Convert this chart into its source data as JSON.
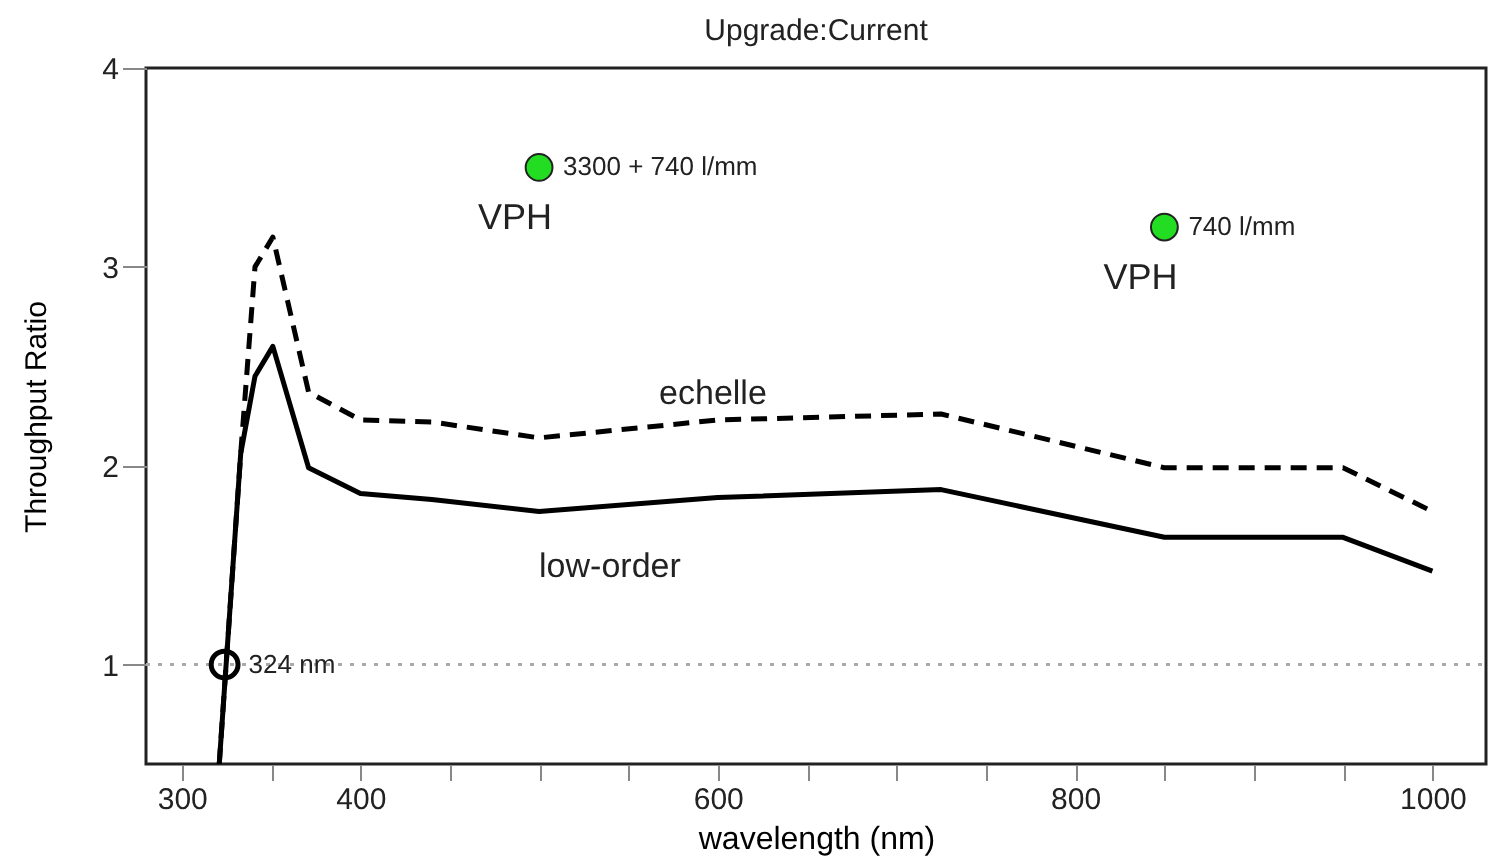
{
  "chart_data": {
    "type": "line",
    "title": "Upgrade:Current",
    "xlabel": "wavelength (nm)",
    "ylabel": "Throughput Ratio",
    "xlim": [
      280,
      1030
    ],
    "ylim": [
      0.5,
      4
    ],
    "xticks": [
      300,
      {
        "value": 350,
        "label": null
      },
      400,
      {
        "value": 450,
        "label": null
      },
      {
        "value": 500,
        "label": null
      },
      {
        "value": 550,
        "label": null
      },
      600,
      {
        "value": 650,
        "label": null
      },
      {
        "value": 700,
        "label": null
      },
      {
        "value": 750,
        "label": null
      },
      800,
      {
        "value": 850,
        "label": null
      },
      {
        "value": 900,
        "label": null
      },
      {
        "value": 950,
        "label": null
      },
      1000
    ],
    "yticks": [
      1,
      2,
      3,
      4
    ],
    "series": [
      {
        "name": "echelle",
        "color": "#000000",
        "line_style": "dashed",
        "x": [
          321,
          333,
          341,
          351,
          371,
          400,
          440,
          500,
          600,
          725,
          850,
          950,
          1000
        ],
        "values": [
          0.5,
          2.06,
          3.0,
          3.15,
          2.37,
          2.23,
          2.22,
          2.14,
          2.23,
          2.26,
          1.99,
          1.99,
          1.77
        ]
      },
      {
        "name": "low-order",
        "color": "#000000",
        "line_style": "solid",
        "x": [
          321,
          333,
          341,
          351,
          371,
          400,
          440,
          500,
          600,
          725,
          850,
          950,
          1000
        ],
        "values": [
          0.5,
          2.06,
          2.45,
          2.6,
          1.99,
          1.86,
          1.83,
          1.77,
          1.84,
          1.88,
          1.64,
          1.64,
          1.47
        ]
      },
      {
        "type": "scatter",
        "color": "#22dd22",
        "marker": "circle",
        "x": [
          500,
          850
        ],
        "values": [
          3.5,
          3.2
        ]
      },
      {
        "type": "scatter",
        "color": "#000000",
        "marker": "circle",
        "x": [
          324
        ],
        "values": [
          1
        ]
      }
    ],
    "ref_lines": [
      {
        "axis": "y",
        "value": 1,
        "color": "#aaaaaa",
        "line_style": "dotted"
      }
    ],
    "annotations": [
      {
        "text": "324 nm",
        "x": 324,
        "y": 1
      },
      {
        "text": "3300 + 740 l/mm",
        "x": 500,
        "y": 3.5
      },
      {
        "text": "VPH",
        "x": 500,
        "y": 3.5
      },
      {
        "text": "740 l/mm",
        "x": 850,
        "y": 3.2
      },
      {
        "text": "VPH",
        "x": 850,
        "y": 3.2
      }
    ],
    "grid": false
  }
}
